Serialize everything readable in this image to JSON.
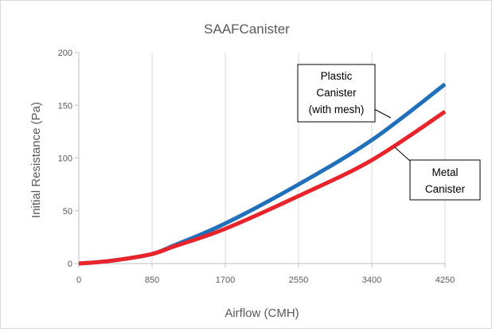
{
  "chart_data": {
    "type": "line",
    "title": "SAAFCanister",
    "xlabel": "Airflow (CMH)",
    "ylabel": "Initial Resistance (Pa)",
    "xlim": [
      0,
      4250
    ],
    "ylim": [
      0,
      200
    ],
    "xticks": [
      0,
      850,
      1700,
      2550,
      3400,
      4250
    ],
    "yticks": [
      0,
      50,
      100,
      150,
      200
    ],
    "xtick_labels": [
      "0",
      "850",
      "1700",
      "2550",
      "3400",
      "4250"
    ],
    "ytick_labels": [
      "0",
      "50",
      "100",
      "150",
      "200"
    ],
    "grid": "vertical",
    "x": [
      0,
      250,
      500,
      850,
      1100,
      1700,
      2550,
      3400,
      4250
    ],
    "series": [
      {
        "color": "#1f6fba",
        "values": [
          0,
          1.5,
          4,
          9,
          17,
          38,
          75,
          117,
          170
        ]
      },
      {
        "color": "#e8242a",
        "values": [
          0,
          1.5,
          4,
          9,
          16,
          33,
          64,
          98,
          144
        ]
      }
    ],
    "annotations": [
      {
        "lines": [
          "Plastic",
          "Canister",
          "(with mesh)"
        ]
      },
      {
        "lines": [
          "Metal",
          "Canister"
        ]
      }
    ]
  }
}
